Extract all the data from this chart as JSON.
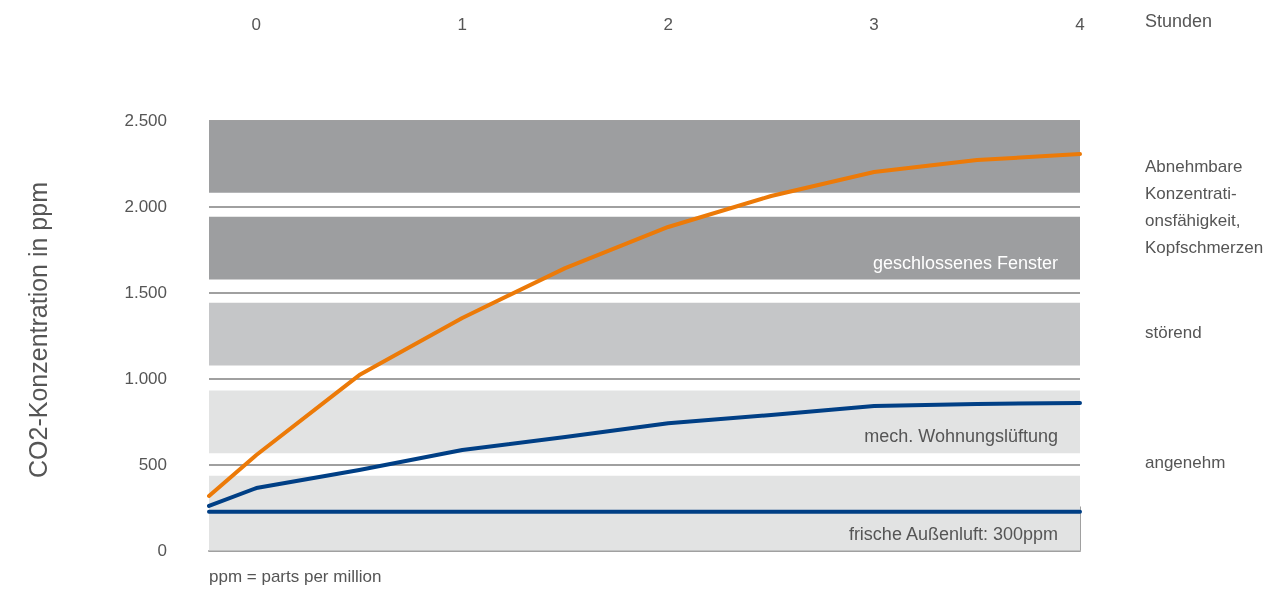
{
  "chart_data": {
    "type": "line",
    "xlabel": "Stunden",
    "ylabel": "CO2-Konzentration in ppm",
    "xlim": [
      -0.23,
      4
    ],
    "xticks": [
      0,
      1,
      2,
      3,
      4
    ],
    "ylim": [
      0,
      2500
    ],
    "yticks": [
      {
        "value": 0,
        "label": "0"
      },
      {
        "value": 500,
        "label": "500"
      },
      {
        "value": 1000,
        "label": "1.000"
      },
      {
        "value": 1500,
        "label": "1.500"
      },
      {
        "value": 2000,
        "label": "2.000"
      },
      {
        "value": 2500,
        "label": "2.500"
      }
    ],
    "grid": "y",
    "marker": "none",
    "line_style": "solid",
    "series": [
      {
        "color": "#ec7a08",
        "x": [
          -0.23,
          0,
          0.5,
          1,
          1.5,
          2,
          2.5,
          3,
          3.5,
          4
        ],
        "values": [
          317,
          555,
          1020,
          1352,
          1642,
          1881,
          2061,
          2201,
          2270,
          2305
        ]
      },
      {
        "color": "#003f85",
        "x": [
          -0.23,
          0,
          0.5,
          1,
          1.5,
          2,
          2.5,
          3,
          3.5,
          4
        ],
        "values": [
          259,
          363,
          468,
          584,
          660,
          740,
          788,
          840,
          852,
          858
        ]
      },
      {
        "color": "#003f85",
        "x": [
          -0.23,
          4
        ],
        "values": [
          225,
          225
        ]
      }
    ],
    "bands": [
      {
        "axis": "y",
        "from": 2080,
        "to": 2500,
        "label": null,
        "color": "#9d9ea0"
      },
      {
        "axis": "y",
        "from": 1575,
        "to": 1940,
        "label": "geschlossenes Fenster",
        "color": "#9d9ea0"
      },
      {
        "axis": "y",
        "from": 1075,
        "to": 1440,
        "label": null,
        "color": "#c5c6c8"
      },
      {
        "axis": "y",
        "from": 565,
        "to": 930,
        "label": "mech. Wohnungslüftung",
        "color": "#e2e3e3"
      },
      {
        "axis": "y",
        "from": 0,
        "to": 435,
        "label": "frische Außenluft: 300ppm",
        "color": "#e2e3e3"
      }
    ],
    "annotations": [
      "Abnehmbare\nKonzentrati-\nonsfähigkeit,\nKopfschmerzen",
      "störend",
      "angenehm",
      "ppm = parts per million"
    ]
  }
}
